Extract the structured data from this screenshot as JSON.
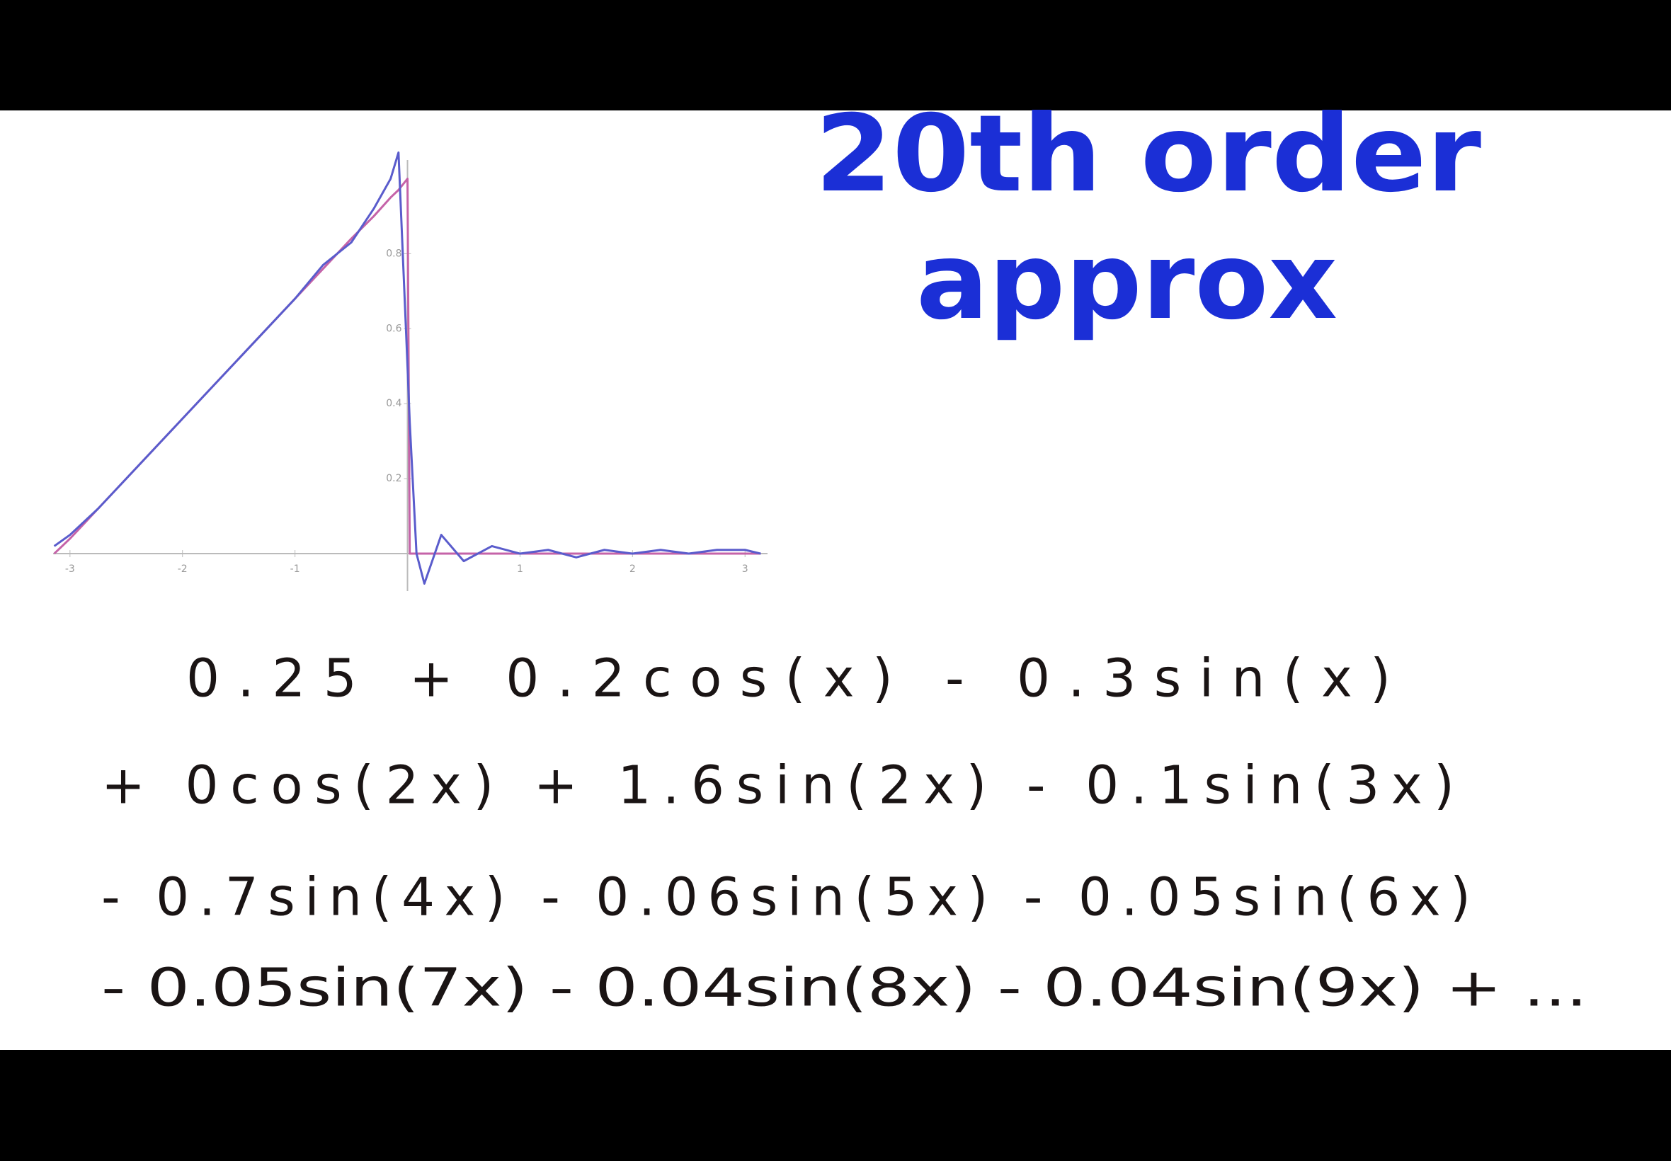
{
  "heading": [
    "20th order",
    "approx"
  ],
  "equation_lines": [
    "0.25 + 0.2cos(x) - 0.3sin(x)",
    "+ 0cos(2x) + 1.6sin(2x) - 0.1sin(3x)",
    "- 0.7sin(4x) - 0.06sin(5x) - 0.05sin(6x)",
    "- 0.05sin(7x) - 0.04sin(8x) - 0.04sin(9x) + ..."
  ],
  "chart_data": {
    "type": "line",
    "x": [
      -3.14,
      -3,
      -2.75,
      -2.5,
      -2.25,
      -2,
      -1.75,
      -1.5,
      -1.25,
      -1,
      -0.75,
      -0.5,
      -0.3,
      -0.15,
      -0.08,
      0,
      0.02,
      0.08,
      0.15,
      0.3,
      0.5,
      0.75,
      1,
      1.25,
      1.5,
      1.75,
      2,
      2.25,
      2.5,
      2.75,
      3,
      3.14
    ],
    "series": [
      {
        "color": "#c563a8",
        "values": [
          0,
          0.04,
          0.12,
          0.2,
          0.28,
          0.36,
          0.44,
          0.52,
          0.6,
          0.68,
          0.76,
          0.84,
          0.9,
          0.95,
          0.97,
          1,
          0,
          0,
          0,
          0,
          0,
          0,
          0,
          0,
          0,
          0,
          0,
          0,
          0,
          0,
          0,
          0
        ]
      },
      {
        "color": "#5a5ccc",
        "values": [
          0.02,
          0.05,
          0.12,
          0.2,
          0.28,
          0.36,
          0.44,
          0.52,
          0.6,
          0.68,
          0.77,
          0.83,
          0.92,
          1.0,
          1.07,
          0.5,
          0.35,
          0.0,
          -0.08,
          0.05,
          -0.02,
          0.02,
          0.0,
          0.01,
          -0.01,
          0.01,
          0,
          0.01,
          0,
          0.01,
          0.01,
          0
        ]
      }
    ],
    "xlim": [
      -3.15,
      3.2
    ],
    "ylim": [
      -0.1,
      1.05
    ],
    "xticks": [
      -3,
      -2,
      -1,
      1,
      2,
      3
    ],
    "yticks": [
      0.2,
      0.4,
      0.6,
      0.8
    ]
  }
}
